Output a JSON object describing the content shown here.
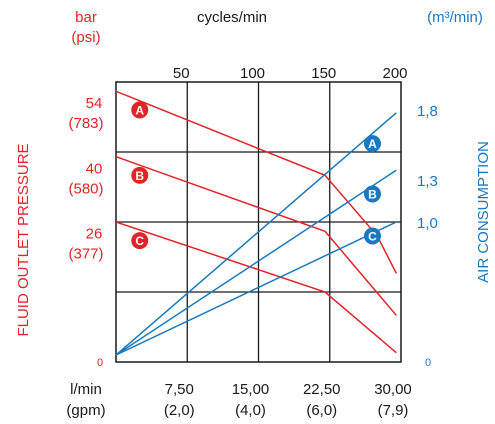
{
  "chart_data": {
    "type": "line",
    "left_axis": {
      "label": "FLUID OUTLET PRESSURE",
      "unit_top": "bar",
      "unit_bottom": "(psi)",
      "ticks": [
        {
          "value": 54,
          "bar": "54",
          "psi": "(783)"
        },
        {
          "value": 40,
          "bar": "40",
          "psi": "(580)"
        },
        {
          "value": 26,
          "bar": "26",
          "psi": "(377)"
        }
      ],
      "zero": "0",
      "range": [
        0,
        60
      ]
    },
    "right_axis": {
      "label": "AIR CONSUMPTION",
      "unit": "(m³/min)",
      "ticks": [
        {
          "value": 1.8,
          "label": "1,8"
        },
        {
          "value": 1.3,
          "label": "1,3"
        },
        {
          "value": 1.0,
          "label": "1,0"
        }
      ],
      "zero": "0",
      "range": [
        0,
        2.0
      ]
    },
    "top_axis": {
      "label": "cycles/min",
      "ticks": [
        {
          "value": 50,
          "label": "50"
        },
        {
          "value": 100,
          "label": "100"
        },
        {
          "value": 150,
          "label": "150"
        },
        {
          "value": 200,
          "label": "200"
        }
      ]
    },
    "bottom_axis": {
      "unit_top": "l/min",
      "unit_bottom": "(gpm)",
      "ticks": [
        {
          "value": 7.5,
          "lmin": "7,50",
          "gpm": "(2,0)"
        },
        {
          "value": 15.0,
          "lmin": "15,00",
          "gpm": "(4,0)"
        },
        {
          "value": 22.5,
          "lmin": "22,50",
          "gpm": "(6,0)"
        },
        {
          "value": 30.0,
          "lmin": "30,00",
          "gpm": "(7,9)"
        }
      ],
      "range": [
        0,
        30
      ]
    },
    "pressure_series": [
      {
        "name": "A",
        "color": "#e2242a",
        "points": [
          [
            0,
            58
          ],
          [
            22,
            40
          ],
          [
            27.5,
            27
          ],
          [
            29.5,
            19
          ]
        ],
        "marker": [
          2.5,
          54
        ]
      },
      {
        "name": "B",
        "color": "#e2242a",
        "points": [
          [
            0,
            44
          ],
          [
            22,
            28
          ],
          [
            29.5,
            10
          ]
        ],
        "marker": [
          2.5,
          40
        ]
      },
      {
        "name": "C",
        "color": "#e2242a",
        "points": [
          [
            0,
            30
          ],
          [
            22,
            15
          ],
          [
            29.5,
            2
          ]
        ],
        "marker": [
          2.5,
          26
        ]
      }
    ],
    "air_series": [
      {
        "name": "A",
        "color": "#1a79bd",
        "points": [
          [
            0,
            0.05
          ],
          [
            29.5,
            1.78
          ]
        ],
        "marker": [
          27,
          1.56
        ]
      },
      {
        "name": "B",
        "color": "#1a79bd",
        "points": [
          [
            0,
            0.05
          ],
          [
            29.5,
            1.37
          ]
        ],
        "marker": [
          27,
          1.2
        ]
      },
      {
        "name": "C",
        "color": "#1a79bd",
        "points": [
          [
            0,
            0.05
          ],
          [
            29.5,
            1.0
          ]
        ],
        "marker": [
          27,
          0.9
        ]
      }
    ],
    "grid": true
  }
}
